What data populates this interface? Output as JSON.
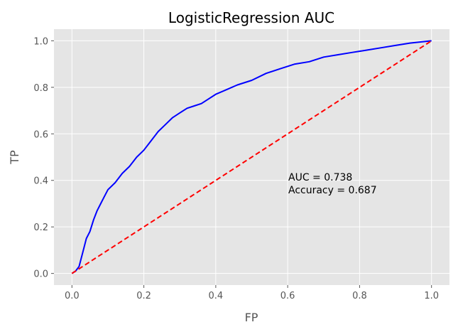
{
  "chart_data": {
    "type": "line",
    "title": "LogisticRegression AUC",
    "xlabel": "FP",
    "ylabel": "TP",
    "xlim": [
      -0.05,
      1.05
    ],
    "ylim": [
      -0.05,
      1.05
    ],
    "xticks": [
      "0.0",
      "0.2",
      "0.4",
      "0.6",
      "0.8",
      "1.0"
    ],
    "yticks": [
      "0.0",
      "0.2",
      "0.4",
      "0.6",
      "0.8",
      "1.0"
    ],
    "grid": true,
    "background": "#e5e5e5",
    "series": [
      {
        "color": "#0000ff",
        "style": "solid",
        "x": [
          0.0,
          0.01,
          0.02,
          0.03,
          0.04,
          0.05,
          0.06,
          0.07,
          0.08,
          0.09,
          0.1,
          0.12,
          0.14,
          0.16,
          0.18,
          0.2,
          0.22,
          0.24,
          0.26,
          0.28,
          0.3,
          0.32,
          0.34,
          0.36,
          0.38,
          0.4,
          0.43,
          0.46,
          0.5,
          0.54,
          0.58,
          0.62,
          0.66,
          0.7,
          0.74,
          0.78,
          0.82,
          0.86,
          0.9,
          0.94,
          0.97,
          1.0
        ],
        "y": [
          0.0,
          0.01,
          0.03,
          0.09,
          0.15,
          0.18,
          0.23,
          0.27,
          0.3,
          0.33,
          0.36,
          0.39,
          0.43,
          0.46,
          0.5,
          0.53,
          0.57,
          0.61,
          0.64,
          0.67,
          0.69,
          0.71,
          0.72,
          0.73,
          0.75,
          0.77,
          0.79,
          0.81,
          0.83,
          0.86,
          0.88,
          0.9,
          0.91,
          0.93,
          0.94,
          0.95,
          0.96,
          0.97,
          0.98,
          0.99,
          0.995,
          1.0
        ]
      },
      {
        "color": "#ff0000",
        "style": "dashed",
        "x": [
          0.0,
          1.0
        ],
        "y": [
          0.0,
          1.0
        ]
      }
    ],
    "annotations": [
      "AUC = 0.738",
      "Accuracy = 0.687"
    ],
    "annotation_position": [
      0.6,
      0.4
    ]
  }
}
